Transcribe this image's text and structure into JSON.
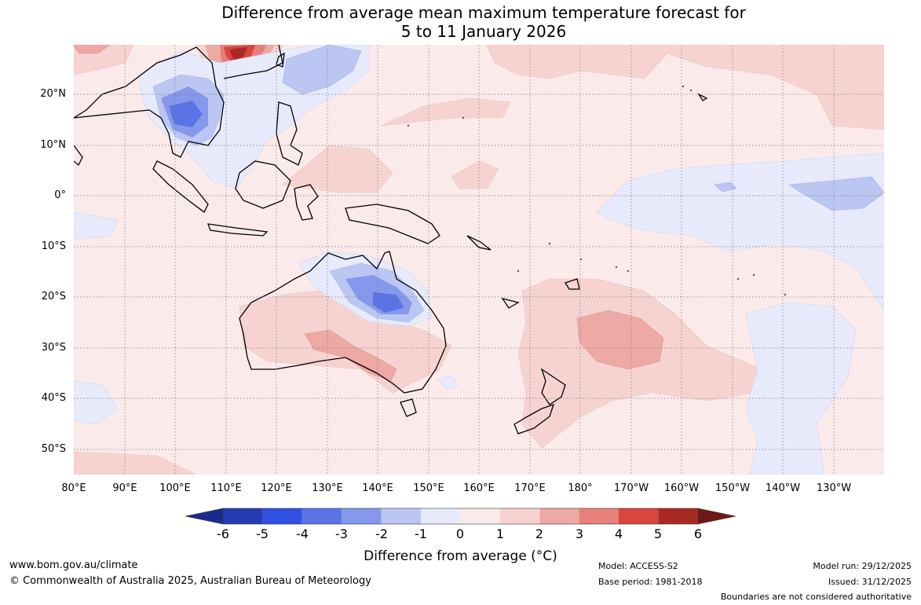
{
  "title": {
    "line1": "Difference from average mean maximum temperature forecast for",
    "line2": "5 to 11 January 2026"
  },
  "axes": {
    "lat_labels": [
      "20°N",
      "10°N",
      "0°",
      "10°S",
      "20°S",
      "30°S",
      "40°S",
      "50°S"
    ],
    "lon_labels": [
      "80°E",
      "90°E",
      "100°E",
      "110°E",
      "120°E",
      "130°E",
      "140°E",
      "150°E",
      "160°E",
      "170°E",
      "180°",
      "170°W",
      "160°W",
      "150°W",
      "140°W",
      "130°W"
    ]
  },
  "colorbar": {
    "title": "Difference from average (°C)",
    "ticks": [
      "-6",
      "-5",
      "-4",
      "-3",
      "-2",
      "-1",
      "0",
      "1",
      "2",
      "3",
      "4",
      "5",
      "6"
    ],
    "colors": [
      "#1b2a8c",
      "#253db3",
      "#2f50e0",
      "#5a74e6",
      "#8598eb",
      "#bcc6f3",
      "#e6eafb",
      "#fbeaea",
      "#f6d3d1",
      "#eea9a5",
      "#e6807a",
      "#d9463c",
      "#a82a24",
      "#701914"
    ]
  },
  "footer": {
    "website": "www.bom.gov.au/climate",
    "copyright": "© Commonwealth of Australia 2025, Australian Bureau of Meteorology",
    "model": "Model: ACCESS-S2",
    "base_period": "Base period: 1981-2018",
    "model_run": "Model run: 29/12/2025",
    "issued": "Issued: 31/12/2025",
    "boundaries": "Boundaries are not considered authoritative"
  }
}
